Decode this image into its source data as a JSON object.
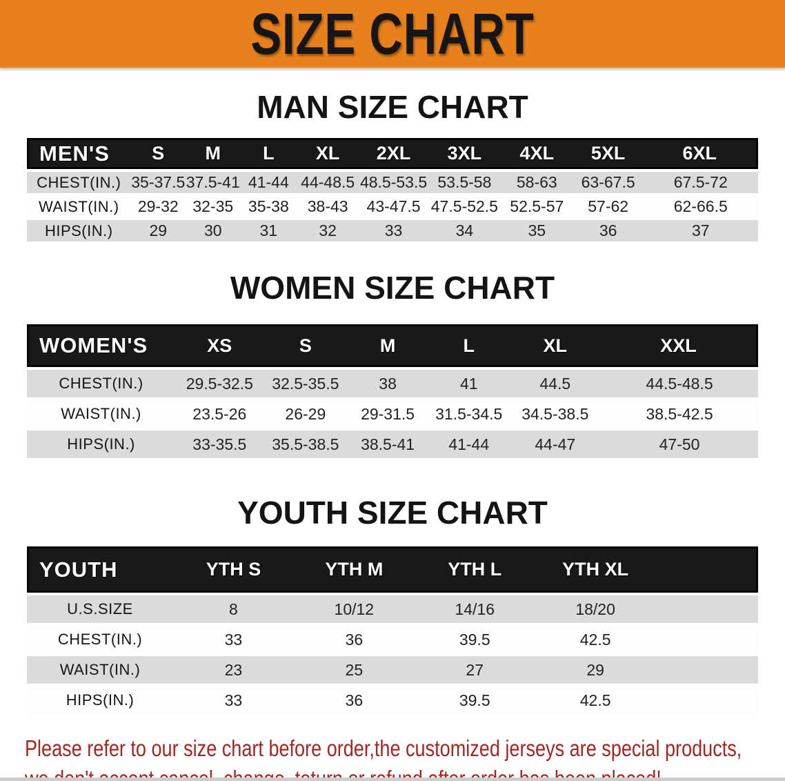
{
  "banner": {
    "title": "SIZE CHART"
  },
  "colors": {
    "banner_bg": "#E8801C",
    "header_bar": "#191919",
    "row_gray": "#DBDBDB",
    "row_white": "#FDFDFD",
    "title_text": "#141414",
    "header_text": "#FFFFFF",
    "value_text": "#222222",
    "disclaimer_text": "#A8241E"
  },
  "sections": [
    {
      "title": "MAN SIZE CHART",
      "table": {
        "header_label": "MEN'S",
        "columns": [
          "S",
          "M",
          "L",
          "XL",
          "2XL",
          "3XL",
          "4XL",
          "5XL",
          "6XL"
        ],
        "rows": [
          {
            "label": "CHEST(IN.)",
            "values": [
              "35-37.5",
              "37.5-41",
              "41-44",
              "44-48.5",
              "48.5-53.5",
              "53.5-58",
              "58-63",
              "63-67.5",
              "67.5-72"
            ]
          },
          {
            "label": "WAIST(IN.)",
            "values": [
              "29-32",
              "32-35",
              "35-38",
              "38-43",
              "43-47.5",
              "47.5-52.5",
              "52.5-57",
              "57-62",
              "62-66.5"
            ]
          },
          {
            "label": "HIPS(IN.)",
            "values": [
              "29",
              "30",
              "31",
              "32",
              "33",
              "34",
              "35",
              "36",
              "37"
            ]
          }
        ]
      }
    },
    {
      "title": "WOMEN SIZE CHART",
      "table": {
        "header_label": "WOMEN'S",
        "columns": [
          "XS",
          "S",
          "M",
          "L",
          "XL",
          "XXL"
        ],
        "rows": [
          {
            "label": "CHEST(IN.)",
            "values": [
              "29.5-32.5",
              "32.5-35.5",
              "38",
              "41",
              "44.5",
              "44.5-48.5"
            ]
          },
          {
            "label": "WAIST(IN.)",
            "values": [
              "23.5-26",
              "26-29",
              "29-31.5",
              "31.5-34.5",
              "34.5-38.5",
              "38.5-42.5"
            ]
          },
          {
            "label": "HIPS(IN.)",
            "values": [
              "33-35.5",
              "35.5-38.5",
              "38.5-41",
              "41-44",
              "44-47",
              "47-50"
            ]
          }
        ]
      }
    },
    {
      "title": "YOUTH SIZE CHART",
      "table": {
        "header_label": "YOUTH",
        "columns": [
          "YTH S",
          "YTH M",
          "YTH L",
          "YTH XL"
        ],
        "rows": [
          {
            "label": "U.S.SIZE",
            "values": [
              "8",
              "10/12",
              "14/16",
              "18/20"
            ]
          },
          {
            "label": "CHEST(IN.)",
            "values": [
              "33",
              "36",
              "39.5",
              "42.5"
            ]
          },
          {
            "label": "WAIST(IN.)",
            "values": [
              "23",
              "25",
              "27",
              "29"
            ]
          },
          {
            "label": "HIPS(IN.)",
            "values": [
              "33",
              "36",
              "39.5",
              "42.5"
            ]
          }
        ]
      }
    }
  ],
  "disclaimer": {
    "lines": [
      "Please refer to our size chart before order,the customized jerseys are special products,",
      "we don't accept cancel, change, teturn or refund after order has been placed!"
    ]
  }
}
